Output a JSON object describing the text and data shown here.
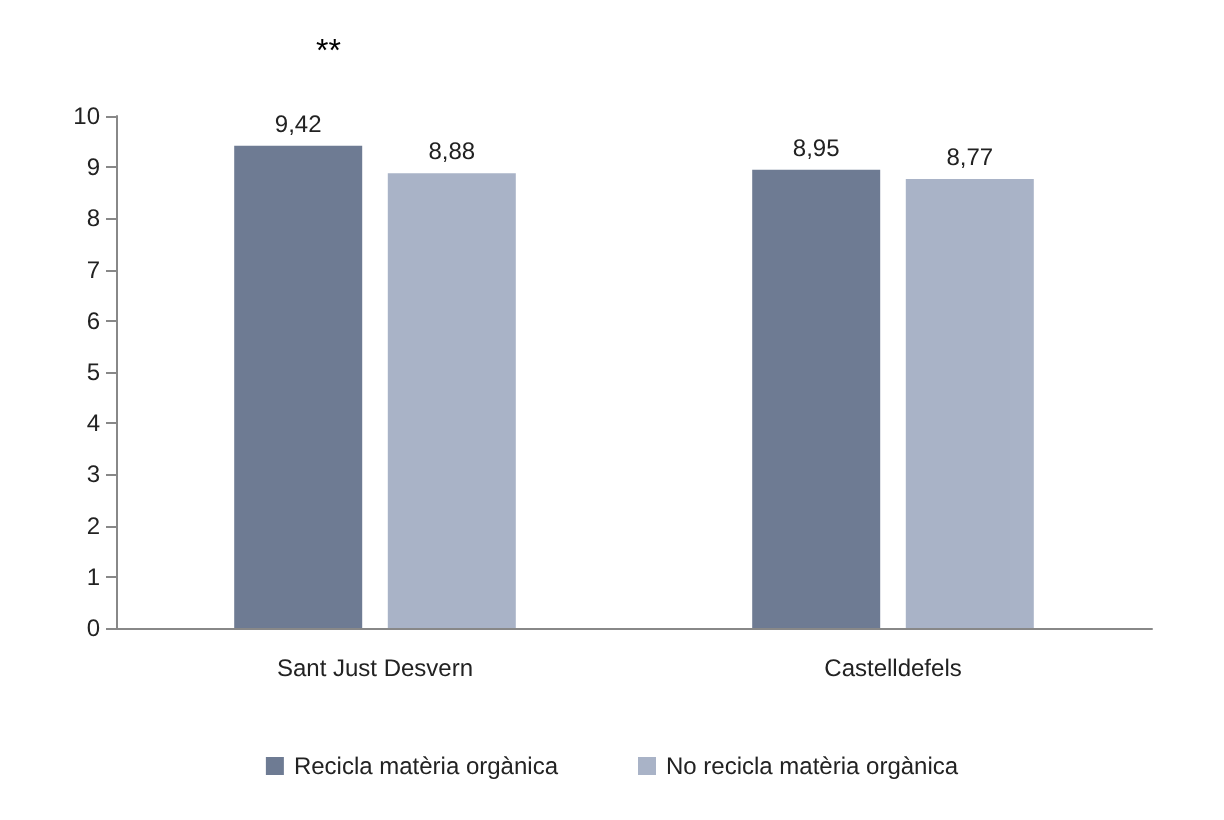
{
  "chart_data": {
    "type": "bar",
    "categories": [
      "Sant Just Desvern",
      "Castelldefels"
    ],
    "series": [
      {
        "name": "Recicla matèria orgànica",
        "color": "#6e7b93",
        "values": [
          9.42,
          8.95
        ],
        "value_labels": [
          "9,42",
          "8,95"
        ]
      },
      {
        "name": "No recicla matèria orgànica",
        "color": "#a9b3c7",
        "values": [
          8.88,
          8.77
        ],
        "value_labels": [
          "8,88",
          "8,77"
        ]
      }
    ],
    "ylim": [
      0,
      10
    ],
    "yticks": [
      0,
      1,
      2,
      3,
      4,
      5,
      6,
      7,
      8,
      9,
      10
    ],
    "grid": false,
    "legend": "bottom",
    "annotations": [
      "**"
    ]
  }
}
